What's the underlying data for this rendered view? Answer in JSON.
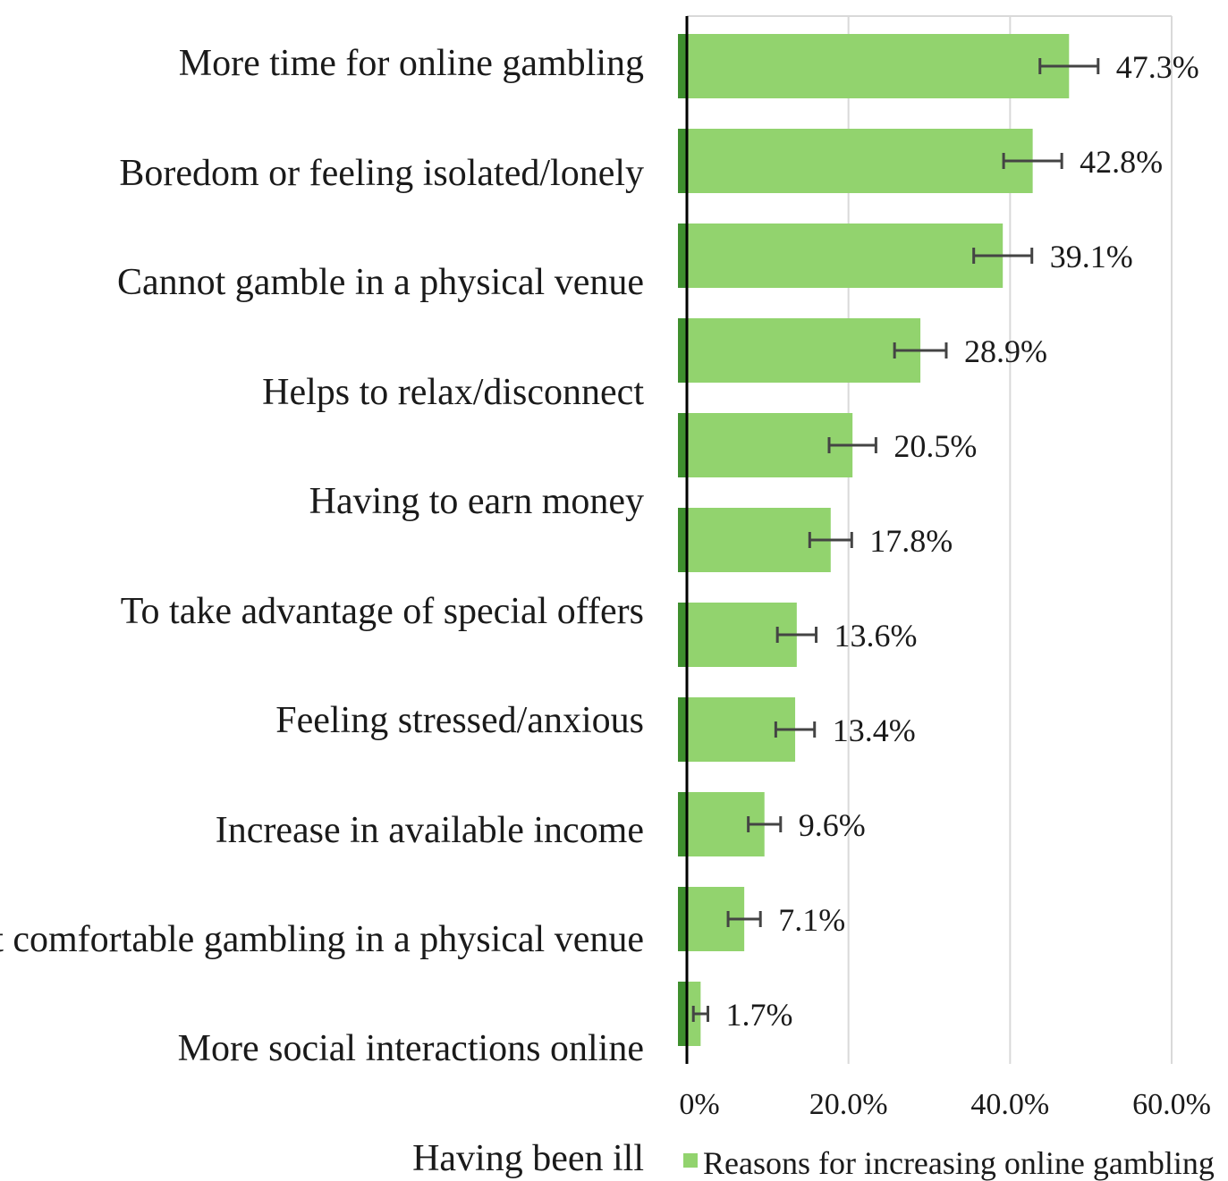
{
  "chart_data": {
    "type": "bar",
    "orientation": "horizontal",
    "categories": [
      "More time for online gambling",
      "Boredom or feeling isolated/lonely",
      "Cannot gamble in a physical venue",
      "Helps to relax/disconnect",
      "Having to earn money",
      "To take advantage of special offers",
      "Feeling stressed/anxious",
      "Increase in available income",
      "Not comfortable gambling in a physical venue",
      "More social interactions online",
      "Having been ill"
    ],
    "series": [
      {
        "name": "Reasons for increasing online gambling",
        "values": [
          47.3,
          42.8,
          39.1,
          28.9,
          20.5,
          17.8,
          13.6,
          13.4,
          9.6,
          7.1,
          1.7
        ],
        "value_labels": [
          "47.3%",
          "42.8%",
          "39.1%",
          "28.9%",
          "20.5%",
          "17.8%",
          "13.6%",
          "13.4%",
          "9.6%",
          "7.1%",
          "1.7%"
        ],
        "error_low": [
          43.7,
          39.2,
          35.5,
          25.7,
          17.6,
          15.2,
          11.2,
          11.0,
          7.6,
          5.1,
          0.8
        ],
        "error_high": [
          50.9,
          46.4,
          42.7,
          32.1,
          23.4,
          20.4,
          16.0,
          15.8,
          11.6,
          9.1,
          2.6
        ]
      }
    ],
    "xlim": [
      0,
      60
    ],
    "x_ticks": [
      0,
      20,
      40,
      60
    ],
    "x_tick_labels": [
      "0%",
      "20.0%",
      "40.0%",
      "60.0%"
    ],
    "grid": true,
    "legend_position": "bottom",
    "colors": {
      "bar": "#92d36e",
      "error_bar": "#444444",
      "axis": "#000000",
      "grid": "#d9d9d9"
    }
  }
}
